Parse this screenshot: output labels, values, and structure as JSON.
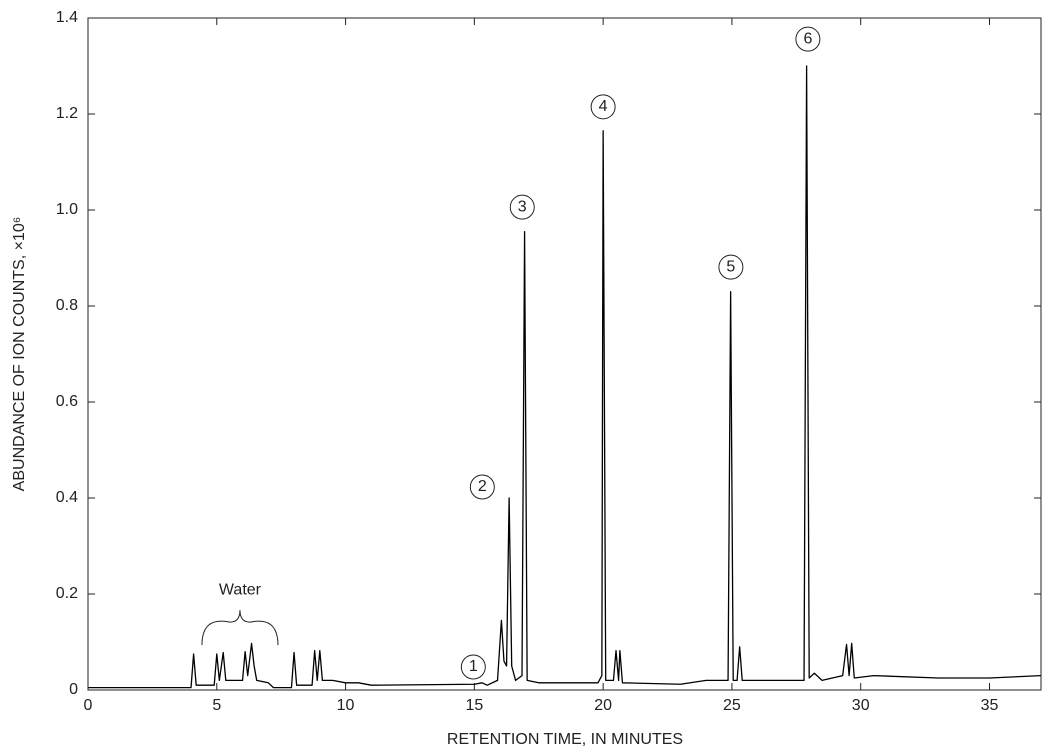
{
  "chart_data": {
    "type": "line",
    "x_label": "RETENTION TIME, IN MINUTES",
    "y_label": "ABUNDANCE OF ION COUNTS, ×10⁶",
    "color": "#000000",
    "x": [
      0,
      2,
      4,
      4.1,
      4.2,
      4.9,
      5.0,
      5.1,
      5.25,
      5.35,
      5.5,
      6.0,
      6.1,
      6.2,
      6.35,
      6.45,
      6.55,
      7.0,
      7.2,
      7.9,
      8.0,
      8.1,
      8.7,
      8.8,
      8.9,
      9.0,
      9.1,
      9.5,
      10.0,
      10.5,
      11,
      15,
      15.3,
      15.5,
      15.9,
      16.05,
      16.15,
      16.25,
      16.35,
      16.45,
      16.6,
      16.85,
      16.95,
      17.05,
      17.5,
      19.8,
      19.95,
      20.0,
      20.1,
      20.4,
      20.5,
      20.6,
      20.65,
      20.75,
      23,
      24,
      24.85,
      24.95,
      25.05,
      25.2,
      25.3,
      25.4,
      27,
      27.8,
      27.9,
      28.0,
      28.2,
      28.5,
      29.3,
      29.45,
      29.55,
      29.65,
      29.75,
      30.5,
      33,
      35,
      37
    ],
    "values": [
      0.005,
      0.005,
      0.005,
      0.075,
      0.01,
      0.01,
      0.075,
      0.02,
      0.078,
      0.02,
      0.02,
      0.02,
      0.08,
      0.03,
      0.097,
      0.05,
      0.02,
      0.015,
      0.005,
      0.005,
      0.078,
      0.01,
      0.01,
      0.082,
      0.02,
      0.082,
      0.02,
      0.02,
      0.015,
      0.015,
      0.01,
      0.012,
      0.015,
      0.01,
      0.02,
      0.145,
      0.06,
      0.05,
      0.4,
      0.05,
      0.02,
      0.03,
      0.955,
      0.02,
      0.015,
      0.015,
      0.03,
      1.165,
      0.02,
      0.02,
      0.082,
      0.02,
      0.082,
      0.015,
      0.012,
      0.02,
      0.02,
      0.83,
      0.02,
      0.02,
      0.09,
      0.02,
      0.02,
      0.02,
      1.3,
      0.025,
      0.035,
      0.02,
      0.03,
      0.095,
      0.03,
      0.097,
      0.025,
      0.03,
      0.025,
      0.025,
      0.03
    ],
    "xlim": [
      0,
      37
    ],
    "xticks": [
      0,
      5,
      10,
      15,
      20,
      25,
      30,
      35
    ],
    "ylim": [
      0,
      1.4
    ],
    "yticks": [
      0,
      0.2,
      0.4,
      0.6,
      0.8,
      {
        "value": 1,
        "label": "1.0"
      },
      1.2,
      1.4
    ],
    "peak_labels": [
      {
        "text": "1",
        "x": 14.96,
        "y": 0.05
      },
      {
        "text": "2",
        "x": 15.31,
        "y": 0.425
      },
      {
        "text": "3",
        "x": 16.86,
        "y": 1.008
      },
      {
        "text": "4",
        "x": 20.0,
        "y": 1.217
      },
      {
        "text": "5",
        "x": 24.96,
        "y": 0.883
      },
      {
        "text": "6",
        "x": 27.95,
        "y": 1.358
      }
    ],
    "annotations": [
      {
        "text": "Water",
        "x": 5.9,
        "y": 0.208
      }
    ]
  }
}
